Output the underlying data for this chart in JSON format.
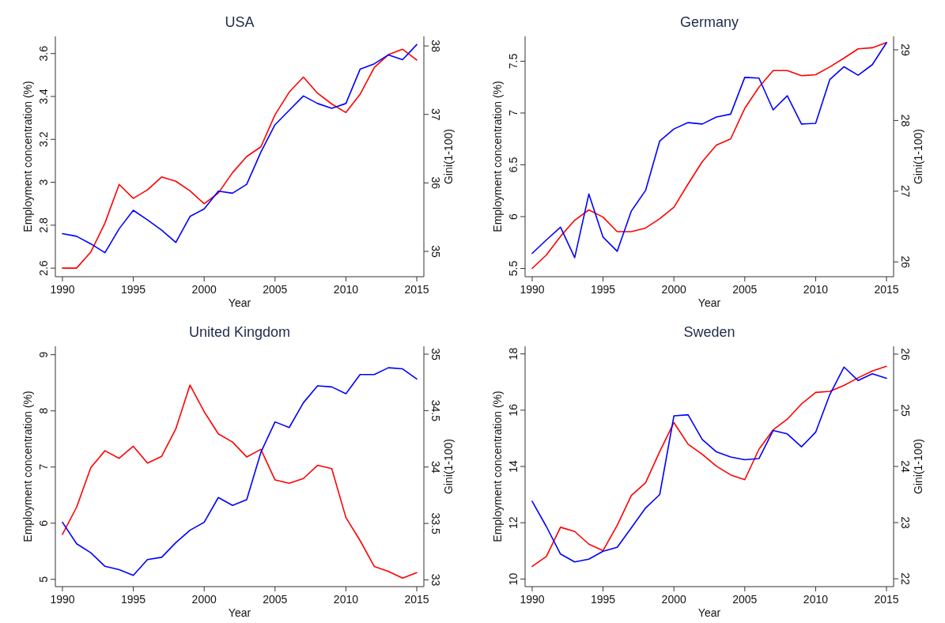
{
  "chart_data": [
    {
      "type": "line",
      "title": "USA",
      "xlabel": "Year",
      "ylabel": "Employment concentration (%)",
      "y2label": "Gini(1-100)",
      "x": [
        1990,
        1991,
        1992,
        1993,
        1994,
        1995,
        1996,
        1997,
        1998,
        1999,
        2000,
        2001,
        2002,
        2003,
        2004,
        2005,
        2006,
        2007,
        2008,
        2009,
        2010,
        2011,
        2012,
        2013,
        2014,
        2015
      ],
      "xlim": [
        1989.5,
        2015.5
      ],
      "xticks": [
        1990,
        1995,
        2000,
        2005,
        2010,
        2015
      ],
      "ylim": [
        2.56,
        3.68
      ],
      "yticks": [
        2.6,
        2.8,
        3,
        3.2,
        3.4,
        3.6
      ],
      "y2lim": [
        34.63,
        38.14
      ],
      "y2ticks": [
        35,
        36,
        37,
        38
      ],
      "series": [
        {
          "color": "#ff0000",
          "values": [
            2.6,
            2.6,
            2.675,
            2.81,
            2.99,
            2.925,
            2.965,
            3.025,
            3.005,
            2.96,
            2.9,
            2.95,
            3.045,
            3.12,
            3.165,
            3.315,
            3.42,
            3.49,
            3.415,
            3.365,
            3.325,
            3.41,
            3.535,
            3.595,
            3.62,
            3.57
          ]
        },
        {
          "color": "#0000ff",
          "axis": "y2",
          "values": [
            35.26,
            35.22,
            35.11,
            34.98,
            35.33,
            35.6,
            35.46,
            35.31,
            35.13,
            35.51,
            35.62,
            35.88,
            35.85,
            35.98,
            36.45,
            36.85,
            37.06,
            37.27,
            37.16,
            37.09,
            37.16,
            37.66,
            37.74,
            37.87,
            37.8,
            38.02
          ]
        }
      ]
    },
    {
      "type": "line",
      "title": "Germany",
      "xlabel": "Year",
      "ylabel": "Employment concentration (%)",
      "y2label": "Gini(1-100)",
      "x": [
        1990,
        1991,
        1992,
        1993,
        1994,
        1995,
        1996,
        1997,
        1998,
        1999,
        2000,
        2001,
        2002,
        2003,
        2004,
        2005,
        2006,
        2007,
        2008,
        2009,
        2010,
        2011,
        2012,
        2013,
        2014,
        2015
      ],
      "xlim": [
        1989.5,
        2015.5
      ],
      "xticks": [
        1990,
        1995,
        2000,
        2005,
        2010,
        2015
      ],
      "ylim": [
        5.42,
        7.74
      ],
      "yticks": [
        5.5,
        6,
        6.5,
        7,
        7.5
      ],
      "y2lim": [
        25.79,
        29.19
      ],
      "y2ticks": [
        26,
        27,
        28,
        29
      ],
      "series": [
        {
          "color": "#ff0000",
          "values": [
            5.5,
            5.63,
            5.81,
            5.965,
            6.065,
            5.995,
            5.855,
            5.855,
            5.89,
            5.98,
            6.09,
            6.315,
            6.53,
            6.69,
            6.75,
            7.045,
            7.25,
            7.41,
            7.41,
            7.36,
            7.37,
            7.445,
            7.53,
            7.62,
            7.63,
            7.68
          ]
        },
        {
          "color": "#0000ff",
          "axis": "y2",
          "values": [
            26.12,
            26.31,
            26.49,
            26.06,
            26.96,
            26.35,
            26.15,
            26.72,
            27.01,
            27.71,
            27.88,
            27.97,
            27.95,
            28.05,
            28.09,
            28.61,
            28.6,
            28.15,
            28.35,
            27.95,
            27.96,
            28.58,
            28.76,
            28.64,
            28.79,
            29.1
          ]
        }
      ]
    },
    {
      "type": "line",
      "title": "United Kingdom",
      "xlabel": "Year",
      "ylabel": "Employment concentration (%)",
      "y2label": "Gini(1-100)",
      "x": [
        1990,
        1991,
        1992,
        1993,
        1994,
        1995,
        1996,
        1997,
        1998,
        1999,
        2000,
        2001,
        2002,
        2003,
        2004,
        2005,
        2006,
        2007,
        2008,
        2009,
        2010,
        2011,
        2012,
        2013,
        2014,
        2015
      ],
      "xlim": [
        1989.5,
        2015.5
      ],
      "xticks": [
        1990,
        1995,
        2000,
        2005,
        2010,
        2015
      ],
      "ylim": [
        4.87,
        9.15
      ],
      "yticks": [
        5,
        6,
        7,
        8,
        9
      ],
      "y2lim": [
        32.94,
        35.07
      ],
      "y2ticks": [
        33,
        33.5,
        34,
        34.5,
        35
      ],
      "series": [
        {
          "color": "#ff0000",
          "values": [
            5.8,
            6.285,
            6.99,
            7.29,
            7.155,
            7.37,
            7.07,
            7.19,
            7.68,
            8.46,
            7.985,
            7.59,
            7.445,
            7.18,
            7.315,
            6.77,
            6.71,
            6.795,
            7.03,
            6.97,
            6.1,
            5.69,
            5.23,
            5.14,
            5.02,
            5.12
          ]
        },
        {
          "color": "#0000ff",
          "axis": "y2",
          "values": [
            33.51,
            33.32,
            33.24,
            33.12,
            33.09,
            33.04,
            33.18,
            33.2,
            33.33,
            33.44,
            33.51,
            33.73,
            33.66,
            33.71,
            34.13,
            34.4,
            34.35,
            34.57,
            34.72,
            34.71,
            34.65,
            34.82,
            34.82,
            34.88,
            34.87,
            34.78
          ]
        }
      ]
    },
    {
      "type": "line",
      "title": "Sweden",
      "xlabel": "Year",
      "ylabel": "Employment concentration (%)",
      "y2label": "Gini(1-100)",
      "x": [
        1990,
        1991,
        1992,
        1993,
        1994,
        1995,
        1996,
        1997,
        1998,
        1999,
        2000,
        2001,
        2002,
        2003,
        2004,
        2005,
        2006,
        2007,
        2008,
        2009,
        2010,
        2011,
        2012,
        2013,
        2014,
        2015
      ],
      "xlim": [
        1989.5,
        2015.5
      ],
      "xticks": [
        1990,
        1995,
        2000,
        2005,
        2010,
        2015
      ],
      "ylim": [
        9.73,
        18.27
      ],
      "yticks": [
        10,
        12,
        14,
        16,
        18
      ],
      "y2lim": [
        21.86,
        26.14
      ],
      "y2ticks": [
        22,
        23,
        24,
        25,
        26
      ],
      "series": [
        {
          "color": "#ff0000",
          "values": [
            10.45,
            10.8,
            11.84,
            11.69,
            11.24,
            11.01,
            11.91,
            12.97,
            13.42,
            14.53,
            15.56,
            14.79,
            14.43,
            14.01,
            13.7,
            13.53,
            14.61,
            15.3,
            15.68,
            16.22,
            16.63,
            16.67,
            16.88,
            17.15,
            17.39,
            17.56
          ]
        },
        {
          "color": "#0000ff",
          "axis": "y2",
          "values": [
            23.38,
            22.93,
            22.44,
            22.3,
            22.35,
            22.49,
            22.56,
            22.91,
            23.26,
            23.5,
            24.9,
            24.92,
            24.48,
            24.26,
            24.17,
            24.12,
            24.14,
            24.64,
            24.58,
            24.35,
            24.61,
            25.28,
            25.77,
            25.53,
            25.65,
            25.57
          ]
        }
      ]
    }
  ]
}
